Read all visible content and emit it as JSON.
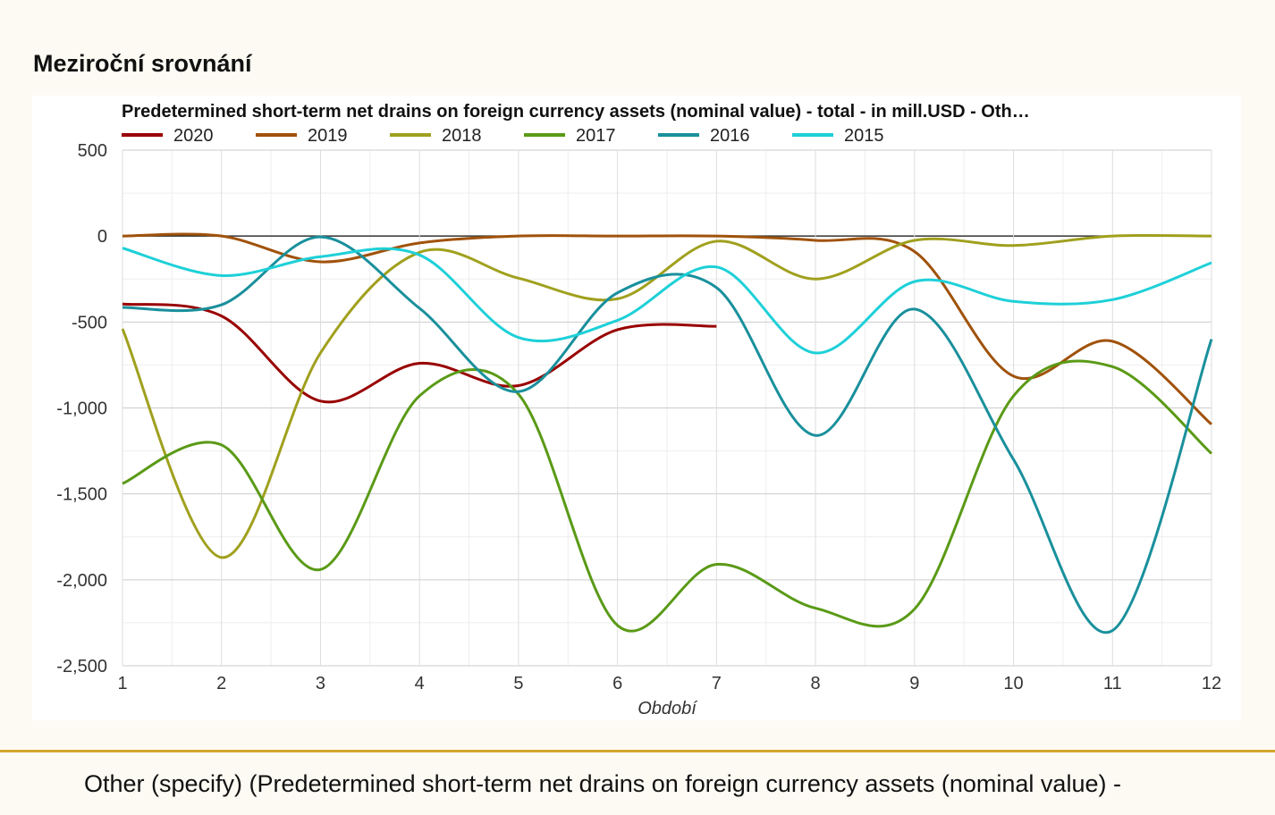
{
  "page_title": "Meziroční srovnání",
  "chart_data": {
    "type": "line",
    "title": "Predetermined short-term net drains on foreign currency assets (nominal value) - total - in mill.USD - Oth…",
    "x_label": "Období",
    "x": [
      1,
      2,
      3,
      4,
      5,
      6,
      7,
      8,
      9,
      10,
      11,
      12
    ],
    "xlim": [
      1,
      12
    ],
    "xticks": [
      1,
      2,
      3,
      4,
      5,
      6,
      7,
      8,
      9,
      10,
      11,
      12
    ],
    "ylim": [
      -2500,
      500
    ],
    "yticks": [
      {
        "value": -2500,
        "label": "-2,500"
      },
      {
        "value": -2000,
        "label": "-2,000"
      },
      {
        "value": -1500,
        "label": "-1,500"
      },
      {
        "value": -1000,
        "label": "-1,000"
      },
      -500,
      0,
      500
    ],
    "grid": true,
    "legend": "top",
    "series": [
      {
        "name": "2020",
        "color": "#990000",
        "values": [
          -395,
          -465,
          -960,
          -740,
          -870,
          -545,
          -525,
          null,
          null,
          null,
          null,
          null
        ]
      },
      {
        "name": "2019",
        "color": "#a0520a",
        "values": [
          0,
          0,
          -150,
          -40,
          0,
          0,
          0,
          -25,
          -90,
          -815,
          -612,
          -1095
        ]
      },
      {
        "name": "2018",
        "color": "#a0a01e",
        "values": [
          -540,
          -1870,
          -680,
          -95,
          -245,
          -365,
          -30,
          -250,
          -25,
          -55,
          0,
          0
        ]
      },
      {
        "name": "2017",
        "color": "#5a9a16",
        "values": [
          -1440,
          -1215,
          -1940,
          -930,
          -920,
          -2265,
          -1910,
          -2165,
          -2170,
          -930,
          -760,
          -1265
        ]
      },
      {
        "name": "2016",
        "color": "#19909c",
        "values": [
          -415,
          -400,
          -5,
          -420,
          -905,
          -330,
          -300,
          -1160,
          -425,
          -1300,
          -2295,
          -600
        ]
      },
      {
        "name": "2015",
        "color": "#1ed0d8",
        "values": [
          -70,
          -230,
          -120,
          -110,
          -590,
          -490,
          -180,
          -680,
          -265,
          -380,
          -370,
          -155
        ]
      }
    ]
  },
  "footer": "Other (specify) (Predetermined short-term net drains on foreign currency assets (nominal value) -"
}
